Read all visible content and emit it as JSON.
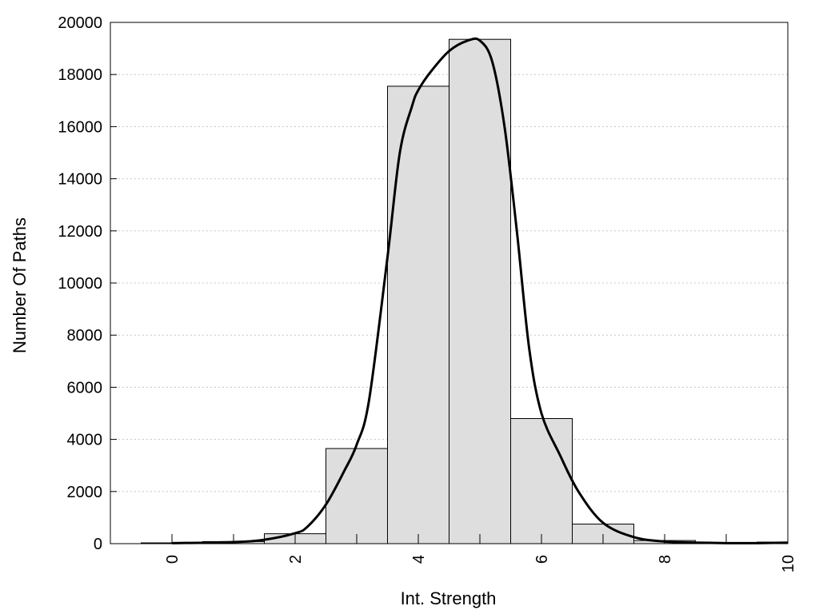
{
  "chart_data": {
    "type": "bar",
    "title": "",
    "xlabel": "Int. Strength",
    "ylabel": "Number Of Paths",
    "xlim": [
      -1,
      10
    ],
    "ylim": [
      0,
      20000
    ],
    "grid": "horizontal-dotted",
    "x_ticks": [
      "0",
      "2",
      "4",
      "6",
      "8",
      "10"
    ],
    "y_ticks": [
      "0",
      "2000",
      "4000",
      "6000",
      "8000",
      "10000",
      "12000",
      "14000",
      "16000",
      "18000",
      "20000"
    ],
    "bin_width": 1,
    "bins": [
      {
        "x": 0,
        "value": 30
      },
      {
        "x": 1,
        "value": 80
      },
      {
        "x": 2,
        "value": 380
      },
      {
        "x": 3,
        "value": 3650
      },
      {
        "x": 4,
        "value": 17550
      },
      {
        "x": 5,
        "value": 19350
      },
      {
        "x": 6,
        "value": 4800
      },
      {
        "x": 7,
        "value": 750
      },
      {
        "x": 8,
        "value": 120
      },
      {
        "x": 9,
        "value": 40
      },
      {
        "x": 10,
        "value": 60
      }
    ],
    "fit_curve": {
      "x": [
        0,
        1,
        1.5,
        2,
        2.2,
        2.5,
        2.8,
        3,
        3.2,
        3.5,
        3.7,
        3.9,
        4,
        4.2,
        4.5,
        4.8,
        5,
        5.2,
        5.4,
        5.6,
        5.8,
        6,
        6.3,
        6.6,
        7,
        7.5,
        8,
        8.5,
        9,
        9.5,
        10
      ],
      "y": [
        20,
        60,
        150,
        400,
        650,
        1500,
        2800,
        3800,
        5500,
        11000,
        15000,
        16800,
        17400,
        18100,
        18900,
        19300,
        19300,
        18500,
        16000,
        12000,
        7500,
        5000,
        3400,
        2000,
        800,
        250,
        80,
        40,
        20,
        20,
        40
      ]
    },
    "colors": {
      "bar_fill": "#dedede",
      "bar_stroke": "#000000",
      "curve": "#000000",
      "grid": "#c8c8c8"
    }
  }
}
